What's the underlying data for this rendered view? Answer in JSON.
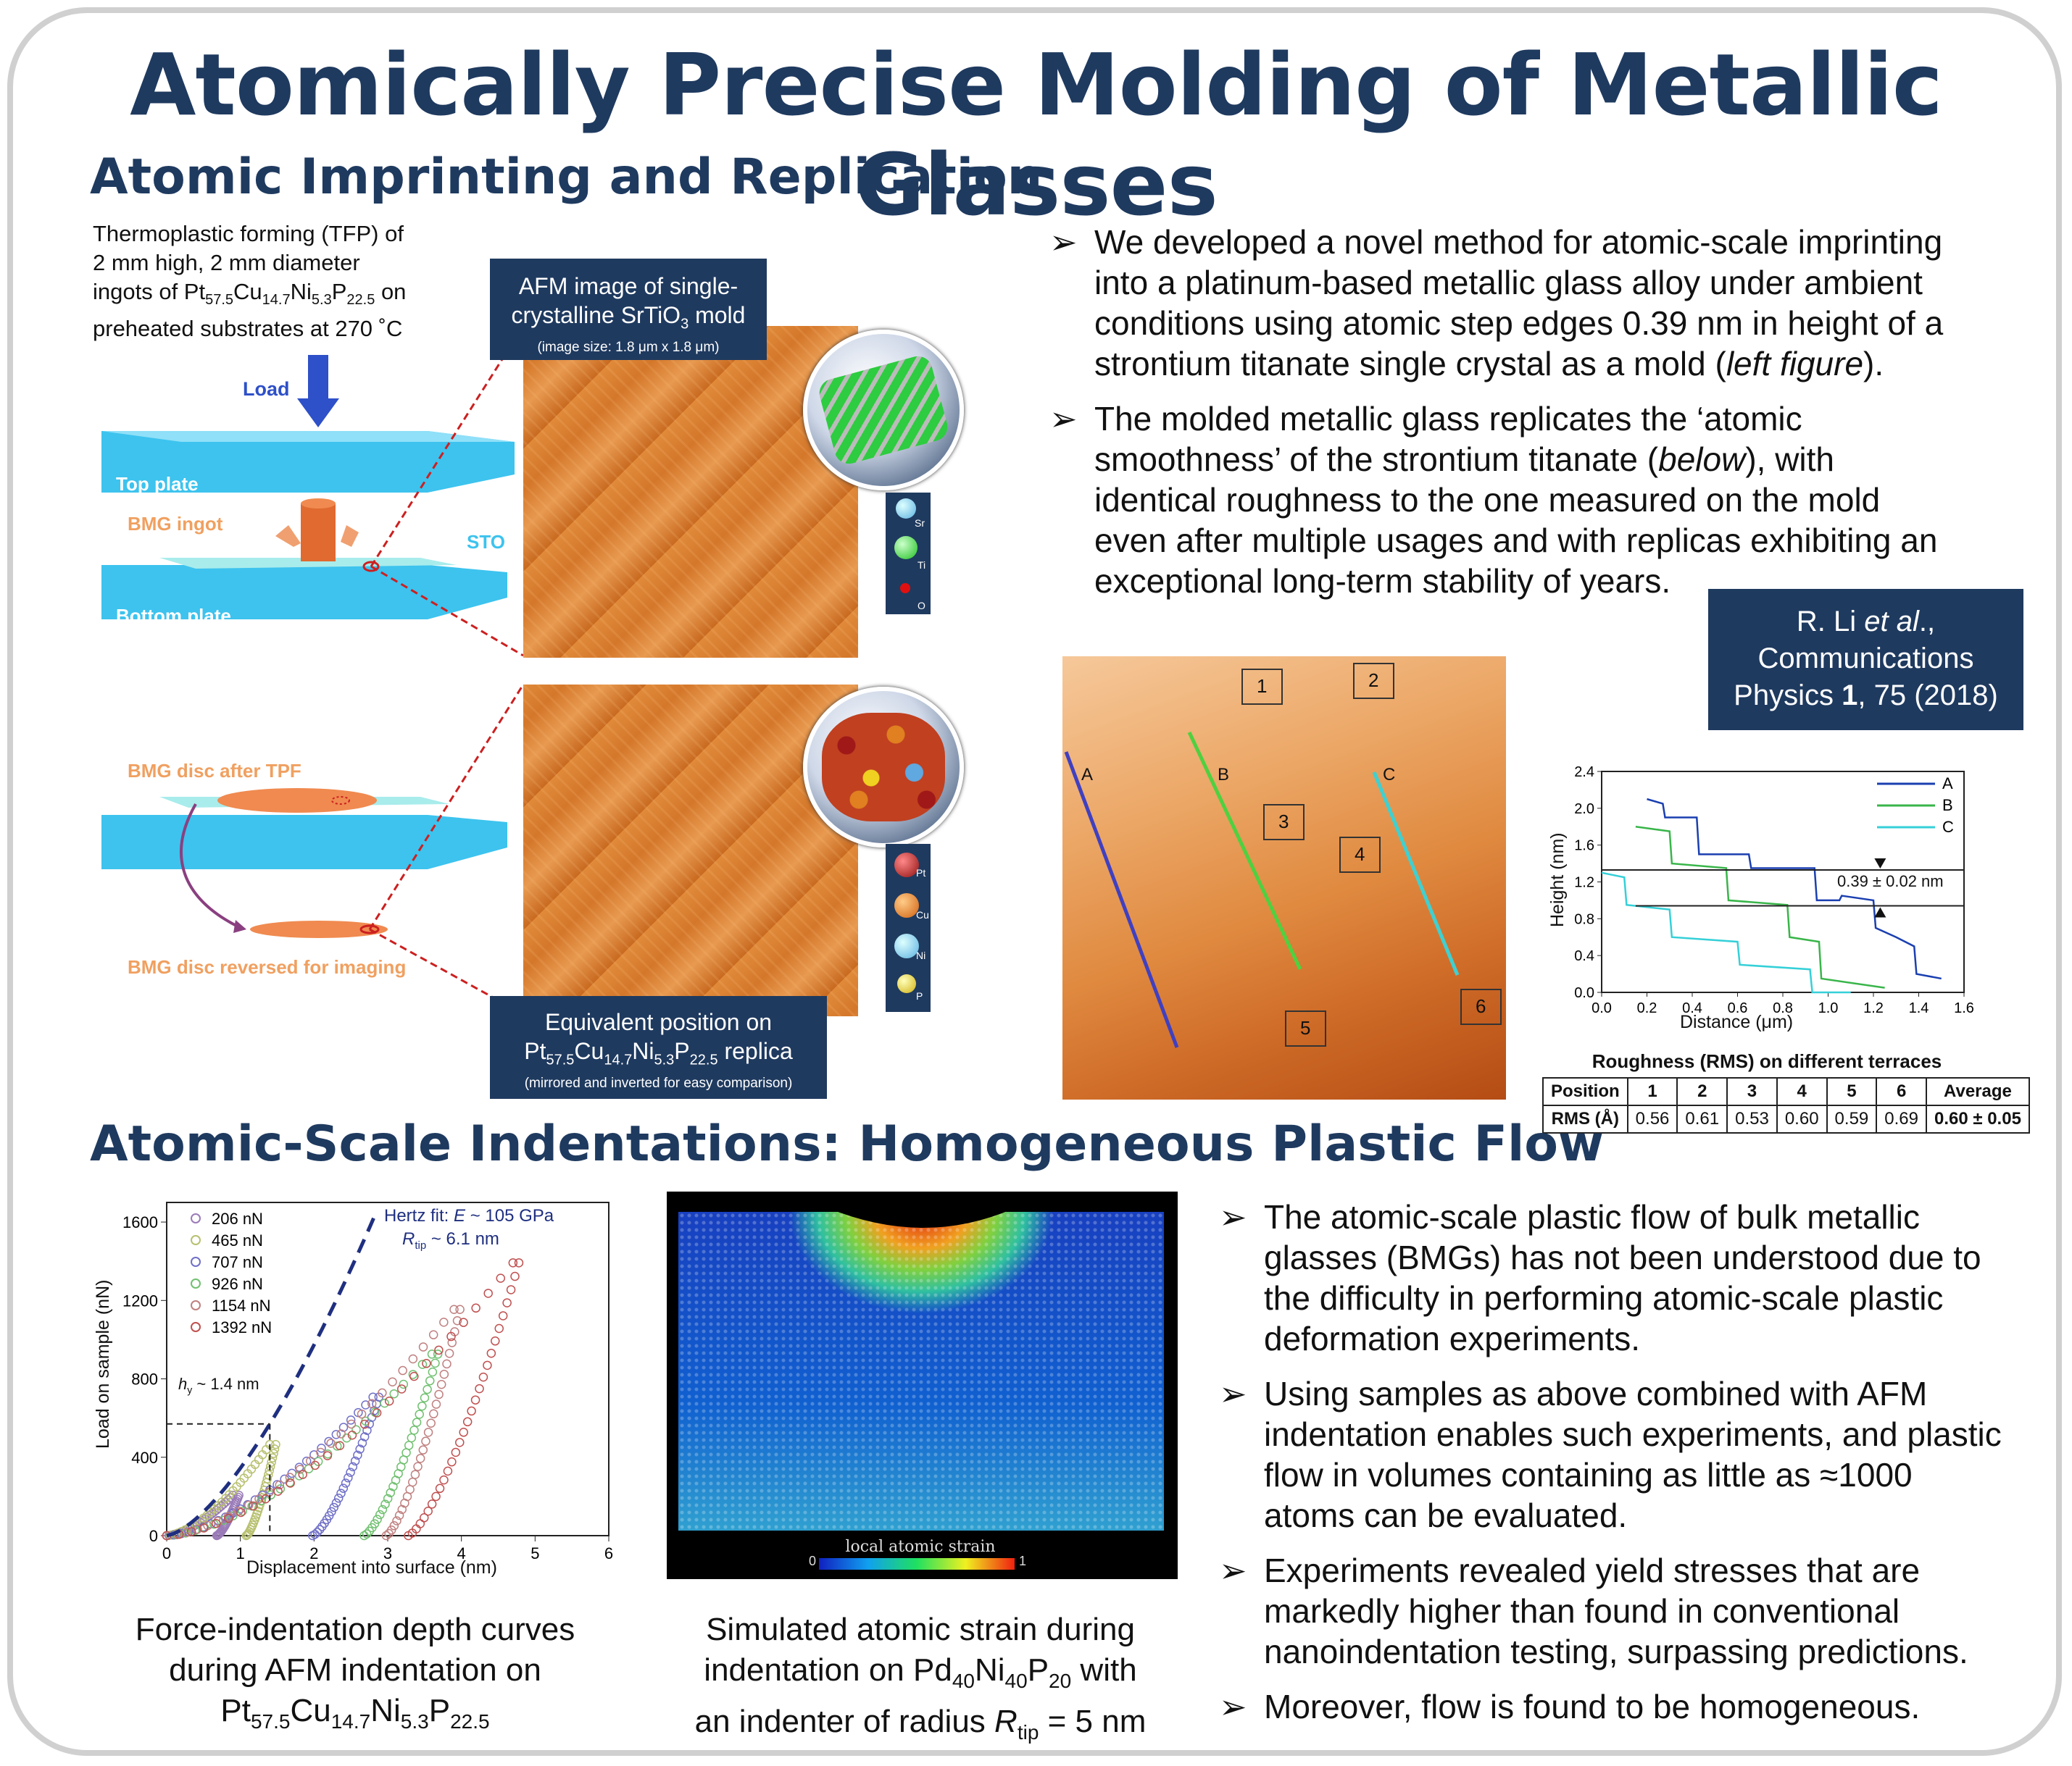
{
  "title": "Atomically Precise Molding of Metallic Glasses",
  "section1": {
    "title": "Atomic Imprinting and Replication",
    "tfp_text": [
      "Thermoplastic forming (TFP) of",
      "2 mm high, 2 mm diameter",
      "ingots of Pt",
      "57.5",
      "Cu",
      "14.7",
      "Ni",
      "5.3",
      "P",
      "22.5",
      " on",
      "preheated substrates at 270 ˚C"
    ],
    "schematic_labels": {
      "load": "Load",
      "top_plate": "Top plate",
      "bmg_ingot": "BMG ingot",
      "sto": "STO",
      "bottom_plate": "Bottom plate",
      "bmg_disc_after": "BMG disc after TPF",
      "bmg_disc_reversed": "BMG disc reversed for imaging"
    },
    "afm_box": {
      "line1": "AFM image of single-",
      "line2a": "crystalline SrTiO",
      "line2sub": "3",
      "line2b": " mold",
      "small": "(image size: 1.8 μm x 1.8 μm)"
    },
    "replica_box": {
      "line1": "Equivalent position on",
      "formula": [
        "Pt",
        "57.5",
        "Cu",
        "14.7",
        "Ni",
        "5.3",
        "P",
        "22.5"
      ],
      "line2tail": " replica",
      "small": "(mirrored and inverted for easy comparison)"
    },
    "legend_sto": [
      "Sr",
      "Ti",
      "O"
    ],
    "legend_bmg": [
      "Pt",
      "Cu",
      "Ni",
      "P"
    ],
    "bullets": [
      [
        "We developed a novel method for atomic-scale imprinting",
        "into a platinum-based metallic glass alloy under ambient",
        "conditions using atomic step edges 0.39 nm in height of a",
        "strontium titanate single crystal as a mold (",
        "left figure",
        ")."
      ],
      [
        "The molded metallic glass replicates the ‘atomic",
        "smoothness’ of the strontium titanate (",
        "below",
        "), with",
        "identical roughness to the one measured on the mold",
        "even after multiple usages and with replicas exhibiting an",
        "exceptional long-term stability of years."
      ]
    ],
    "reference": {
      "l1a": "R. Li ",
      "l1b": "et al",
      "l1c": ".,",
      "l2": "Communications",
      "l3a": "Physics ",
      "l3b": "1",
      "l3c": ", 75 (2018)"
    },
    "afm_labels": {
      "lines": [
        "A",
        "B",
        "C"
      ],
      "boxes": [
        "1",
        "2",
        "3",
        "4",
        "5",
        "6"
      ]
    }
  },
  "profile_chart": {
    "chart_data": {
      "type": "line",
      "xlabel": "Distance (μm)",
      "ylabel": "Height (nm)",
      "xlim": [
        0,
        1.6
      ],
      "ylim": [
        0,
        2.4
      ],
      "xticks": [
        "0.0",
        "0.2",
        "0.4",
        "0.6",
        "0.8",
        "1.0",
        "1.2",
        "1.4",
        "1.6"
      ],
      "yticks": [
        "0.0",
        "0.4",
        "0.8",
        "1.2",
        "1.6",
        "2.0",
        "2.4"
      ],
      "legend_position": "top-right",
      "annotation": "0.39 ± 0.02 nm",
      "series": [
        {
          "name": "A",
          "color": "#1a3fb0",
          "x": [
            0.2,
            0.27,
            0.28,
            0.42,
            0.43,
            0.65,
            0.66,
            0.94,
            0.95,
            1.05,
            1.06,
            1.2,
            1.21,
            1.3,
            1.38,
            1.39,
            1.5
          ],
          "y": [
            2.1,
            2.05,
            1.9,
            1.9,
            1.5,
            1.5,
            1.35,
            1.35,
            1.0,
            1.0,
            1.05,
            1.0,
            0.7,
            0.6,
            0.5,
            0.2,
            0.15
          ]
        },
        {
          "name": "B",
          "color": "#39b54a",
          "x": [
            0.15,
            0.3,
            0.31,
            0.55,
            0.56,
            0.82,
            0.83,
            0.96,
            0.97,
            1.25
          ],
          "y": [
            1.8,
            1.75,
            1.4,
            1.35,
            1.0,
            0.95,
            0.6,
            0.55,
            0.15,
            0.05
          ]
        },
        {
          "name": "C",
          "color": "#35d0d8",
          "x": [
            0.0,
            0.1,
            0.11,
            0.3,
            0.31,
            0.6,
            0.61,
            0.92,
            0.93,
            1.1
          ],
          "y": [
            1.3,
            1.25,
            0.95,
            0.9,
            0.6,
            0.55,
            0.3,
            0.25,
            0.0,
            0.0
          ]
        }
      ]
    }
  },
  "roughness": {
    "title": "Roughness (RMS) on different terraces",
    "header": [
      "Position",
      "1",
      "2",
      "3",
      "4",
      "5",
      "6",
      "Average"
    ],
    "row": [
      "RMS (Å)",
      "0.56",
      "0.61",
      "0.53",
      "0.60",
      "0.59",
      "0.69",
      "0.60 ± 0.05"
    ]
  },
  "section2": {
    "title": "Atomic-Scale Indentations: Homogeneous Plastic Flow",
    "bullets": [
      [
        "The atomic-scale plastic flow of bulk metallic",
        "glasses (BMGs) has not been understood due to",
        "the difficulty in performing atomic-scale plastic",
        "deformation experiments."
      ],
      [
        "Using samples as above combined with AFM",
        "indentation enables such experiments, and plastic",
        "flow in volumes containing as little as ≈1000",
        "atoms can be evaluated."
      ],
      [
        "Experiments revealed yield stresses that are",
        "markedly higher than found in conventional",
        "nanoindentation testing, surpassing predictions."
      ],
      [
        "Moreover, flow is found to be homogeneous."
      ]
    ],
    "caption1": {
      "l1": "Force-indentation depth curves",
      "l2": "during AFM indentation on",
      "formula": [
        "Pt",
        "57.5",
        "Cu",
        "14.7",
        "Ni",
        "5.3",
        "P",
        "22.5"
      ]
    },
    "caption2": {
      "l1": "Simulated atomic strain during",
      "l2a": "indentation on Pd",
      "s1": "40",
      "l2b": "Ni",
      "s2": "40",
      "l2c": "P",
      "s3": "20",
      "l2d": " with",
      "l3a": "an indenter of radius ",
      "l3b": "R",
      "l3sub": "tip",
      "l3c": " = 5 nm"
    },
    "strain_label": "local atomic strain",
    "strain_min": "0",
    "strain_max": "1"
  },
  "indent_chart": {
    "chart_data": {
      "type": "scatter",
      "xlabel": "Displacement into surface (nm)",
      "ylabel": "Load on sample (nN)",
      "xlim": [
        0,
        6
      ],
      "ylim": [
        0,
        1700
      ],
      "xticks": [
        "0",
        "1",
        "2",
        "3",
        "4",
        "5",
        "6"
      ],
      "yticks": [
        "0",
        "400",
        "800",
        "1200",
        "1600"
      ],
      "legend_position": "top-left",
      "hertz_fit": "Hertz fit: E ~ 105 GPa",
      "rtip": "R_tip ~ 6.1 nm",
      "yield_label": "h_y ~ 1.4 nm",
      "series": [
        {
          "name": "206 nN",
          "color": "#9a7bb8",
          "peak_x": 0.9,
          "peak_y": 206,
          "end_x": 0.6
        },
        {
          "name": "465 nN",
          "color": "#b8c070",
          "peak_x": 1.4,
          "peak_y": 465,
          "end_x": 1.0
        },
        {
          "name": "707 nN",
          "color": "#7070c8",
          "peak_x": 2.8,
          "peak_y": 707,
          "end_x": 1.9
        },
        {
          "name": "926 nN",
          "color": "#70c070",
          "peak_x": 3.6,
          "peak_y": 926,
          "end_x": 2.6
        },
        {
          "name": "1154 nN",
          "color": "#c08080",
          "peak_x": 3.9,
          "peak_y": 1154,
          "end_x": 2.9
        },
        {
          "name": "1392 nN",
          "color": "#c05050",
          "peak_x": 4.7,
          "peak_y": 1392,
          "end_x": 3.2
        }
      ]
    }
  },
  "colors": {
    "navy": "#1f3a5f",
    "orange_label": "#f0a060",
    "plate_blue": "#3dc3ee",
    "sto_label": "#3dc3ee"
  }
}
